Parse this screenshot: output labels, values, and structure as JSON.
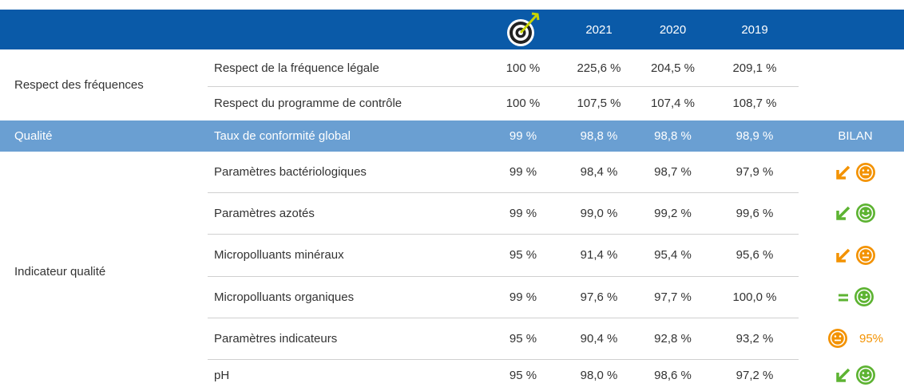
{
  "header": {
    "years": [
      "2021",
      "2020",
      "2019"
    ]
  },
  "frequency": {
    "group": "Respect des fréquences",
    "rows": [
      {
        "label": "Respect de la fréquence légale",
        "target": "100 %",
        "values": [
          "225,6 %",
          "204,5 %",
          "209,1 %"
        ]
      },
      {
        "label": "Respect du programme de contrôle",
        "target": "100 %",
        "values": [
          "107,5 %",
          "107,4 %",
          "108,7 %"
        ]
      }
    ]
  },
  "quality": {
    "group": "Qualité",
    "label": "Taux de conformité global",
    "target": "99 %",
    "values": [
      "98,8 %",
      "98,8 %",
      "98,9 %"
    ],
    "bilan": "BILAN"
  },
  "indicators": {
    "group": "Indicateur qualité",
    "rows": [
      {
        "label": "Paramètres bactériologiques",
        "target": "99 %",
        "values": [
          "98,4 %",
          "98,7 %",
          "97,9 %"
        ]
      },
      {
        "label": "Paramètres azotés",
        "target": "99 %",
        "values": [
          "99,0 %",
          "99,2 %",
          "99,6 %"
        ]
      },
      {
        "label": "Micropolluants minéraux",
        "target": "95 %",
        "values": [
          "91,4 %",
          "95,4 %",
          "95,6 %"
        ]
      },
      {
        "label": "Micropolluants organiques",
        "target": "99 %",
        "values": [
          "97,6 %",
          "97,7 %",
          "100,0 %"
        ]
      },
      {
        "label": "Paramètres indicateurs",
        "target": "95 %",
        "values": [
          "90,4 %",
          "92,8 %",
          "93,2 %"
        ],
        "bilan": "95%"
      },
      {
        "label": "pH",
        "target": "95 %",
        "values": [
          "98,0 %",
          "98,6 %",
          "97,2 %"
        ]
      }
    ]
  }
}
